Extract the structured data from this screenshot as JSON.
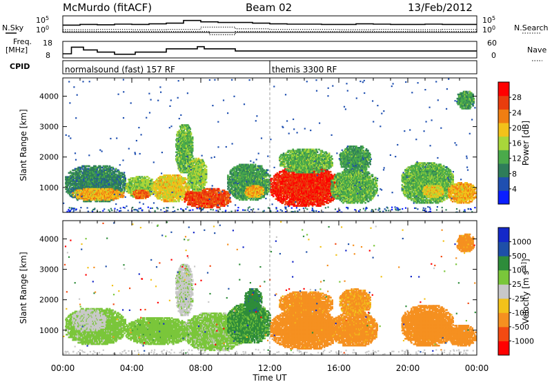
{
  "header": {
    "station": "McMurdo (fitACF)",
    "beam": "Beam 02",
    "date": "13/Feb/2012"
  },
  "strip_labels": {
    "nsky": "N.Sky",
    "nsearch": "N.Search",
    "freq_line1": "Freq.",
    "freq_line2": "[MHz]",
    "nave": "Nave",
    "cpid": "CPID",
    "noise_ticks_left": [
      "10^5",
      "10^0"
    ],
    "noise_ticks_right": [
      "10^5",
      "10^0"
    ],
    "freq_ticks": [
      "18",
      "8"
    ],
    "nave_ticks": [
      "60",
      "0"
    ]
  },
  "cpid_segments": [
    {
      "label": "normalsound (fast) 157 RF",
      "start_hour": 0
    },
    {
      "label": "themis 3300 RF",
      "start_hour": 12
    }
  ],
  "colors": {
    "power_scale": [
      "#0a1eff",
      "#1f4fb0",
      "#2e7d5a",
      "#4aaa4a",
      "#a8d63a",
      "#f2c21a",
      "#f07e12",
      "#e93d0e",
      "#ff0000"
    ],
    "velocity_scale": [
      "#ff0000",
      "#f24a12",
      "#f59020",
      "#f2c21a",
      "#c8c8c8",
      "#7ac63a",
      "#2e8c3a",
      "#1e4fa8",
      "#1428c8"
    ],
    "trace": "#000000"
  },
  "chart_data": [
    {
      "type": "line",
      "name": "noise-strip",
      "series": [
        {
          "name": "N.Sky",
          "style": "solid",
          "x": [
            0,
            1,
            2,
            3,
            4,
            5,
            6,
            7,
            8,
            9,
            10,
            11,
            12,
            13,
            14,
            15,
            16,
            17,
            18,
            19,
            20,
            21,
            22,
            23,
            24
          ],
          "y": [
            2.2,
            2.4,
            2.3,
            2.5,
            2.4,
            2.6,
            2.8,
            3.6,
            3.2,
            3.0,
            3.0,
            2.8,
            2.6,
            2.5,
            2.5,
            2.4,
            2.4,
            2.6,
            2.5,
            2.4,
            2.4,
            2.5,
            2.4,
            2.4,
            2.4
          ]
        },
        {
          "name": "N.Search",
          "style": "dotted",
          "x": [
            0,
            2,
            4,
            6,
            8,
            10,
            12,
            14,
            16,
            18,
            20,
            22,
            24
          ],
          "y": [
            0.8,
            0.9,
            0.8,
            0.9,
            1.6,
            1.1,
            0.9,
            0.9,
            0.8,
            0.9,
            0.8,
            0.9,
            0.8
          ]
        }
      ],
      "ylim": [
        0,
        5
      ]
    },
    {
      "type": "line",
      "name": "freq-nave-strip",
      "series": [
        {
          "name": "Freq.",
          "style": "solid",
          "x": [
            0,
            0.5,
            1.2,
            2.0,
            3.0,
            4.2,
            6.0,
            7.8,
            8.2,
            10.0,
            24
          ],
          "y": [
            10.5,
            14.5,
            12.8,
            11.5,
            10.2,
            11.5,
            13.5,
            14.8,
            13.5,
            12.2,
            12.2
          ]
        },
        {
          "name": "Nave",
          "style": "dotted",
          "x": [
            0,
            6,
            8.5,
            10,
            12,
            18,
            24
          ],
          "y": [
            24,
            24,
            22,
            24,
            24,
            24,
            24
          ]
        }
      ],
      "ylim": [
        8,
        18
      ]
    },
    {
      "type": "heatmap",
      "name": "power",
      "xlabel": "",
      "ylabel": "Slant Range [km]",
      "xlim": [
        0,
        24
      ],
      "ylim": [
        180,
        4600
      ],
      "yticks": [
        1000,
        2000,
        3000,
        4000
      ],
      "colorbar": {
        "label": "Power [dB]",
        "ticks": [
          "28",
          "24",
          "20",
          "16",
          "12",
          "8",
          "4"
        ]
      },
      "blobs": [
        {
          "t0": 0.1,
          "t1": 3.6,
          "r0": 550,
          "r1": 1750,
          "value": 8
        },
        {
          "t0": 0.5,
          "t1": 3.5,
          "r0": 600,
          "r1": 1000,
          "value": 20
        },
        {
          "t0": 3.6,
          "t1": 5.3,
          "r0": 700,
          "r1": 1400,
          "value": 14
        },
        {
          "t0": 4.0,
          "t1": 5.0,
          "r0": 650,
          "r1": 950,
          "value": 24
        },
        {
          "t0": 5.2,
          "t1": 7.3,
          "r0": 550,
          "r1": 1450,
          "value": 18
        },
        {
          "t0": 6.5,
          "t1": 7.5,
          "r0": 1500,
          "r1": 3100,
          "value": 12
        },
        {
          "t0": 7.0,
          "t1": 9.7,
          "r0": 350,
          "r1": 1000,
          "value": 26
        },
        {
          "t0": 7.2,
          "t1": 8.3,
          "r0": 900,
          "r1": 2000,
          "value": 14
        },
        {
          "t0": 9.5,
          "t1": 12.0,
          "r0": 600,
          "r1": 1800,
          "value": 10
        },
        {
          "t0": 10.5,
          "t1": 11.6,
          "r0": 700,
          "r1": 1100,
          "value": 20
        },
        {
          "t0": 12.0,
          "t1": 16.0,
          "r0": 400,
          "r1": 1700,
          "value": 28
        },
        {
          "t0": 12.5,
          "t1": 15.6,
          "r0": 1500,
          "r1": 2300,
          "value": 12
        },
        {
          "t0": 15.5,
          "t1": 18.2,
          "r0": 500,
          "r1": 1600,
          "value": 12
        },
        {
          "t0": 16.0,
          "t1": 17.8,
          "r0": 1500,
          "r1": 2400,
          "value": 10
        },
        {
          "t0": 19.6,
          "t1": 22.6,
          "r0": 500,
          "r1": 1850,
          "value": 12
        },
        {
          "t0": 20.8,
          "t1": 22.0,
          "r0": 700,
          "r1": 1100,
          "value": 18
        },
        {
          "t0": 22.3,
          "t1": 23.9,
          "r0": 500,
          "r1": 1200,
          "value": 20
        },
        {
          "t0": 22.8,
          "t1": 23.8,
          "r0": 3600,
          "r1": 4200,
          "value": 10
        }
      ]
    },
    {
      "type": "heatmap",
      "name": "velocity",
      "xlabel": "Time UT",
      "ylabel": "Slant Range [km]",
      "xlim": [
        0,
        24
      ],
      "ylim": [
        180,
        4600
      ],
      "xticks": [
        "00:00",
        "04:00",
        "08:00",
        "12:00",
        "16:00",
        "20:00",
        "00:00"
      ],
      "yticks": [
        1000,
        2000,
        3000,
        4000
      ],
      "colorbar": {
        "label": "Velocity [m s^-1]",
        "ticks": [
          "1000",
          "500",
          "100",
          "25",
          "-25",
          "-100",
          "-500",
          "-1000"
        ]
      },
      "blobs": [
        {
          "t0": 0.1,
          "t1": 3.6,
          "r0": 550,
          "r1": 1750,
          "value": 50
        },
        {
          "t0": 0.5,
          "t1": 2.5,
          "r0": 1000,
          "r1": 1700,
          "value": 15
        },
        {
          "t0": 3.6,
          "t1": 7.3,
          "r0": 550,
          "r1": 1450,
          "value": 60
        },
        {
          "t0": 6.5,
          "t1": 7.5,
          "r0": 1500,
          "r1": 3200,
          "value": 15
        },
        {
          "t0": 7.0,
          "t1": 10.5,
          "r0": 350,
          "r1": 1600,
          "value": 40
        },
        {
          "t0": 9.5,
          "t1": 12.0,
          "r0": 600,
          "r1": 1900,
          "value": 120
        },
        {
          "t0": 10.5,
          "t1": 11.5,
          "r0": 1600,
          "r1": 2400,
          "value": 400
        },
        {
          "t0": 12.0,
          "t1": 16.0,
          "r0": 400,
          "r1": 1700,
          "value": -200
        },
        {
          "t0": 12.5,
          "t1": 15.6,
          "r0": 1500,
          "r1": 2300,
          "value": -150
        },
        {
          "t0": 15.5,
          "t1": 18.2,
          "r0": 500,
          "r1": 1600,
          "value": -150
        },
        {
          "t0": 16.0,
          "t1": 17.8,
          "r0": 1500,
          "r1": 2400,
          "value": -120
        },
        {
          "t0": 19.6,
          "t1": 22.6,
          "r0": 500,
          "r1": 1850,
          "value": -200
        },
        {
          "t0": 22.3,
          "t1": 23.9,
          "r0": 500,
          "r1": 1200,
          "value": -250
        },
        {
          "t0": 22.8,
          "t1": 23.8,
          "r0": 3600,
          "r1": 4200,
          "value": -150
        }
      ]
    }
  ]
}
